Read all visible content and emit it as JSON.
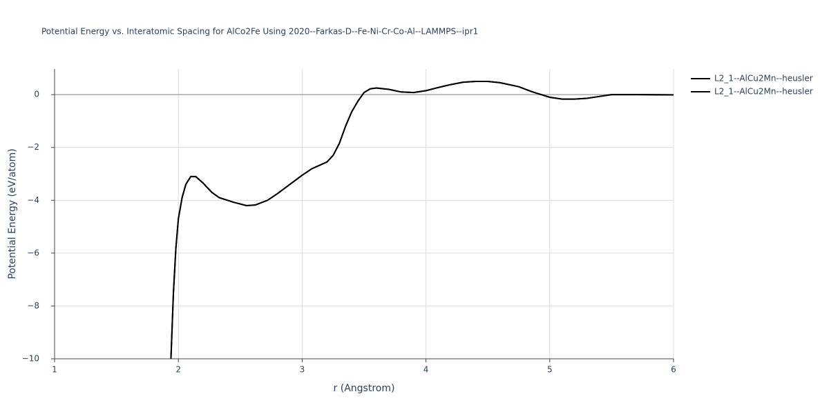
{
  "chart_data": {
    "type": "line",
    "title": "Potential Energy vs. Interatomic Spacing for AlCo2Fe Using 2020--Farkas-D--Fe-Ni-Cr-Co-Al--LAMMPS--ipr1",
    "x_label": "r (Angstrom)",
    "y_label": "Potential Energy (eV/atom)",
    "xlim": [
      1,
      6
    ],
    "xticks": [
      1,
      2,
      3,
      4,
      5,
      6
    ],
    "ylim": [
      -10,
      0.97
    ],
    "yticks": [
      {
        "value": -10,
        "label": "−10"
      },
      {
        "value": -8,
        "label": "−8"
      },
      {
        "value": -6,
        "label": "−6"
      },
      {
        "value": -4,
        "label": "−4"
      },
      {
        "value": -2,
        "label": "−2"
      },
      0
    ],
    "grid": true,
    "legend": "right",
    "x": [
      1.94,
      1.96,
      1.98,
      2.0,
      2.03,
      2.06,
      2.1,
      2.14,
      2.2,
      2.27,
      2.33,
      2.45,
      2.55,
      2.62,
      2.72,
      2.8,
      2.9,
      3.0,
      3.08,
      3.2,
      3.25,
      3.3,
      3.35,
      3.4,
      3.45,
      3.5,
      3.55,
      3.6,
      3.7,
      3.8,
      3.9,
      4.0,
      4.1,
      4.2,
      4.3,
      4.4,
      4.5,
      4.6,
      4.75,
      4.85,
      5.0,
      5.1,
      5.2,
      5.3,
      5.4,
      5.5,
      5.7,
      6.0
    ],
    "series": [
      {
        "name": "L2_1--AlCu2Mn--heusler",
        "color": "#000000",
        "values": [
          -10,
          -7.5,
          -5.8,
          -4.7,
          -3.9,
          -3.4,
          -3.1,
          -3.1,
          -3.35,
          -3.7,
          -3.9,
          -4.08,
          -4.2,
          -4.18,
          -4.0,
          -3.75,
          -3.4,
          -3.05,
          -2.8,
          -2.55,
          -2.3,
          -1.85,
          -1.2,
          -0.65,
          -0.25,
          0.08,
          0.22,
          0.25,
          0.2,
          0.1,
          0.08,
          0.15,
          0.27,
          0.38,
          0.47,
          0.5,
          0.5,
          0.45,
          0.3,
          0.12,
          -0.1,
          -0.17,
          -0.17,
          -0.14,
          -0.07,
          0.0,
          0.0,
          -0.01
        ]
      },
      {
        "name": "L2_1--AlCu2Mn--heusler",
        "color": "#000000",
        "values": [
          -10,
          -7.5,
          -5.8,
          -4.7,
          -3.9,
          -3.4,
          -3.1,
          -3.1,
          -3.35,
          -3.7,
          -3.9,
          -4.08,
          -4.2,
          -4.18,
          -4.0,
          -3.75,
          -3.4,
          -3.05,
          -2.8,
          -2.55,
          -2.3,
          -1.85,
          -1.2,
          -0.65,
          -0.25,
          0.08,
          0.22,
          0.25,
          0.2,
          0.1,
          0.08,
          0.15,
          0.27,
          0.38,
          0.47,
          0.5,
          0.5,
          0.45,
          0.3,
          0.12,
          -0.1,
          -0.17,
          -0.17,
          -0.14,
          -0.07,
          0.0,
          0.0,
          -0.01
        ]
      }
    ]
  }
}
